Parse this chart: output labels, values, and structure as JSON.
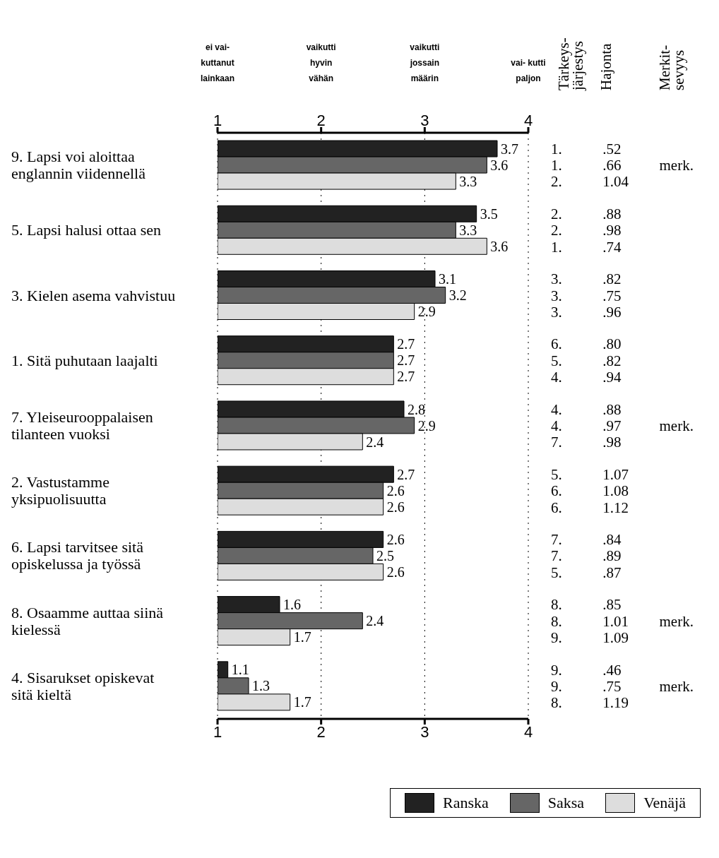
{
  "chart_data": {
    "type": "bar",
    "orientation": "horizontal",
    "categories": [
      "9. Lapsi voi aloittaa englannin viidennellä",
      "5. Lapsi halusi ottaa sen",
      "3. Kielen asema vahvistuu",
      "1. Sitä puhutaan laajalti",
      "7. Yleiseurooppalaisen tilanteen vuoksi",
      "2. Vastustamme yksipuolisuutta",
      "6. Lapsi tarvitsee sitä opiskelussa ja työssä",
      "8. Osaamme auttaa siinä kielessä",
      "4. Sisarukset opiskevat sitä kieltä"
    ],
    "series": [
      {
        "name": "Ranska",
        "color": "#222222",
        "values": [
          3.7,
          3.5,
          3.1,
          2.7,
          2.8,
          2.7,
          2.6,
          1.6,
          1.1
        ]
      },
      {
        "name": "Saksa",
        "color": "#666666",
        "values": [
          3.6,
          3.3,
          3.2,
          2.7,
          2.9,
          2.6,
          2.5,
          2.4,
          1.3
        ]
      },
      {
        "name": "Venäjä",
        "color": "#dddddd",
        "values": [
          3.3,
          3.6,
          2.9,
          2.7,
          2.4,
          2.6,
          2.6,
          1.7,
          1.7
        ]
      }
    ],
    "xlim": [
      1,
      4
    ],
    "xticks": [
      1,
      2,
      3,
      4
    ],
    "x2lim": [
      1,
      4
    ],
    "x2ticks": [
      1,
      2,
      3,
      4
    ],
    "grid": "x",
    "legend": "bottom right",
    "data_labels": true,
    "annotations": [
      "ei vai- kuttanut lainkaan",
      "vaikutti hyvin vähän",
      "vaikutti jossain määrin",
      "vai- kutti paljon",
      "Tärkeys- järjestys",
      "Hajonta",
      "Merkit- sevyys",
      "1. .52",
      "1. .66 merk.",
      "2. 1.04",
      "2. .88",
      "2. .98",
      "1. .74",
      "3. .82",
      "3. .75",
      "3. .96",
      "6. .80",
      "5. .82",
      "4. .94",
      "4. .88",
      "4. .97 merk.",
      "7. .98",
      "5. 1.07",
      "6. 1.08",
      "6. 1.12",
      "7. .84",
      "7. .89",
      "5. .87",
      "8. .85",
      "8. 1.01 merk.",
      "9. 1.09",
      "9. .46",
      "9. .75 merk.",
      "8. 1.19"
    ]
  }
}
